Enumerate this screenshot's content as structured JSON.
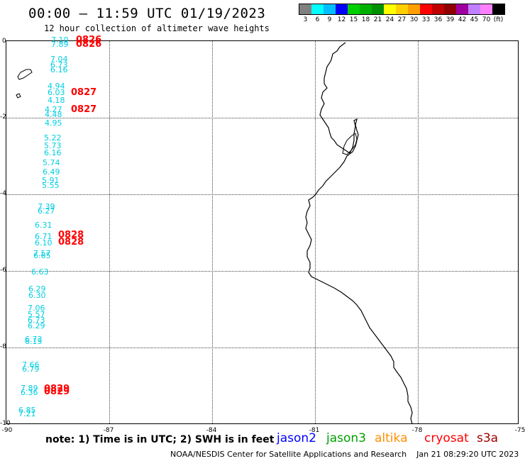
{
  "header": {
    "title": "00:00 – 11:59 UTC 01/19/2023",
    "subtitle": "12 hour collection of altimeter wave heights"
  },
  "legend": {
    "colors": [
      "#808080",
      "#00ffff",
      "#00bfff",
      "#0000ff",
      "#00d000",
      "#00b000",
      "#009000",
      "#ffff00",
      "#ffd000",
      "#ffa000",
      "#ff0000",
      "#c00000",
      "#900000",
      "#a000a0",
      "#c080ff",
      "#ff80ff",
      "#000000"
    ],
    "labels": [
      "3",
      "6",
      "9",
      "12",
      "15",
      "18",
      "21",
      "24",
      "27",
      "30",
      "33",
      "36",
      "39",
      "42",
      "45",
      "70",
      "(ft)"
    ],
    "unit": "(ft)"
  },
  "axes": {
    "y_labels": [
      "0",
      "-2",
      "-4",
      "-6",
      "-8",
      "-10"
    ],
    "x_labels": [
      "-90",
      "-87",
      "-84",
      "-81",
      "-78",
      "-75"
    ]
  },
  "observations": {
    "heights": [
      {
        "text": "7.10",
        "color": "#00cfe0"
      },
      {
        "text": "7.89",
        "color": "#00cfe0"
      },
      {
        "text": "7.04",
        "color": "#00cfe0"
      },
      {
        "text": "6.73",
        "color": "#00cfe0"
      },
      {
        "text": "6.16",
        "color": "#00cfe0"
      },
      {
        "text": "4.94",
        "color": "#00cfe0"
      },
      {
        "text": "6.03",
        "color": "#00cfe0"
      },
      {
        "text": "4.18",
        "color": "#00cfe0"
      },
      {
        "text": "4.27",
        "color": "#00cfe0"
      },
      {
        "text": "4.48",
        "color": "#00cfe0"
      },
      {
        "text": "4.95",
        "color": "#00cfe0"
      },
      {
        "text": "5.22",
        "color": "#00cfe0"
      },
      {
        "text": "5.73",
        "color": "#00cfe0"
      },
      {
        "text": "6.16",
        "color": "#00cfe0"
      },
      {
        "text": "5.74",
        "color": "#00cfe0"
      },
      {
        "text": "6.49",
        "color": "#00cfe0"
      },
      {
        "text": "5.91",
        "color": "#00cfe0"
      },
      {
        "text": "5.55",
        "color": "#00cfe0"
      },
      {
        "text": "7.39",
        "color": "#00cfe0"
      },
      {
        "text": "6.27",
        "color": "#00cfe0"
      },
      {
        "text": "6.31",
        "color": "#00cfe0"
      },
      {
        "text": "6.71",
        "color": "#00cfe0"
      },
      {
        "text": "6.10",
        "color": "#00cfe0"
      },
      {
        "text": "7.57",
        "color": "#00cfe0"
      },
      {
        "text": "6.65",
        "color": "#00cfe0"
      },
      {
        "text": "6.63",
        "color": "#00cfe0"
      },
      {
        "text": "6.29",
        "color": "#00cfe0"
      },
      {
        "text": "6.30",
        "color": "#00cfe0"
      },
      {
        "text": "7.06",
        "color": "#00cfe0"
      },
      {
        "text": "5.57",
        "color": "#00cfe0"
      },
      {
        "text": "6.73",
        "color": "#00cfe0"
      },
      {
        "text": "6.29",
        "color": "#00cfe0"
      },
      {
        "text": "6.73",
        "color": "#00cfe0"
      },
      {
        "text": "6.15",
        "color": "#00cfe0"
      },
      {
        "text": "7.66",
        "color": "#00cfe0"
      },
      {
        "text": "6.79",
        "color": "#00cfe0"
      },
      {
        "text": "7.89",
        "color": "#00cfe0"
      },
      {
        "text": "6.36",
        "color": "#00cfe0"
      },
      {
        "text": "6.85",
        "color": "#00cfe0"
      },
      {
        "text": "7.21",
        "color": "#00cfe0"
      }
    ],
    "times": [
      {
        "text": "0826",
        "color": "#ff0000"
      },
      {
        "text": "0826",
        "color": "#ff0000"
      },
      {
        "text": "0827",
        "color": "#ff0000"
      },
      {
        "text": "0827",
        "color": "#ff0000"
      },
      {
        "text": "0828",
        "color": "#ff0000"
      },
      {
        "text": "0828",
        "color": "#ff0000"
      },
      {
        "text": "0829",
        "color": "#ff0000"
      },
      {
        "text": "0829",
        "color": "#ff0000"
      }
    ]
  },
  "footer": {
    "note": "note: 1) Time is in UTC; 2) SWH is in feet",
    "satellites": [
      {
        "name": "jason2",
        "color": "#0000ff"
      },
      {
        "name": "jason3",
        "color": "#00a000"
      },
      {
        "name": "altika",
        "color": "#ff9000"
      },
      {
        "name": "cryosat",
        "color": "#ff0000"
      },
      {
        "name": "s3a",
        "color": "#a00000"
      }
    ],
    "credit": "NOAA/NESDIS Center for Satellite Applications and Research    Jan 21 08:29:20 UTC 2023"
  }
}
